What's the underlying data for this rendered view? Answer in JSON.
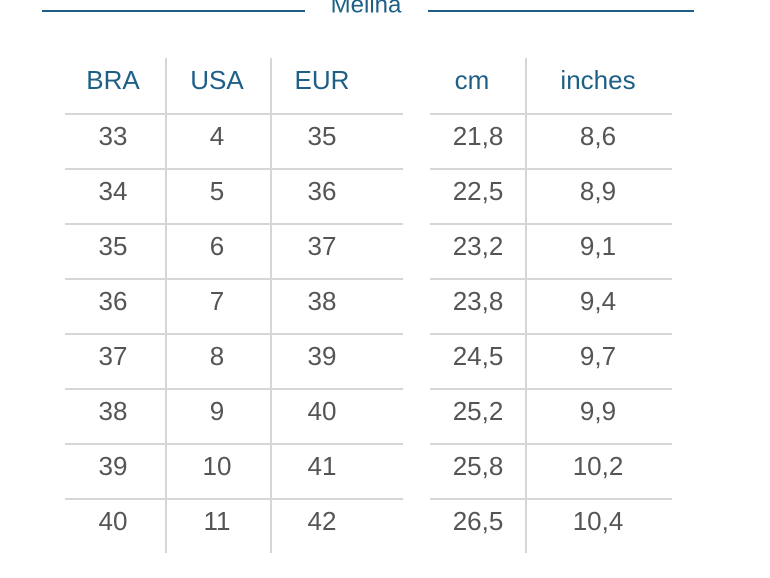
{
  "title": "Melina",
  "table": {
    "headers": [
      "BRA",
      "USA",
      "EUR",
      "cm",
      "inches"
    ],
    "rows": [
      [
        "33",
        "4",
        "35",
        "21,8",
        "8,6"
      ],
      [
        "34",
        "5",
        "36",
        "22,5",
        "8,9"
      ],
      [
        "35",
        "6",
        "37",
        "23,2",
        "9,1"
      ],
      [
        "36",
        "7",
        "38",
        "23,8",
        "9,4"
      ],
      [
        "37",
        "8",
        "39",
        "24,5",
        "9,7"
      ],
      [
        "38",
        "9",
        "40",
        "25,2",
        "9,9"
      ],
      [
        "39",
        "10",
        "41",
        "25,8",
        "10,2"
      ],
      [
        "40",
        "11",
        "42",
        "26,5",
        "10,4"
      ]
    ]
  }
}
